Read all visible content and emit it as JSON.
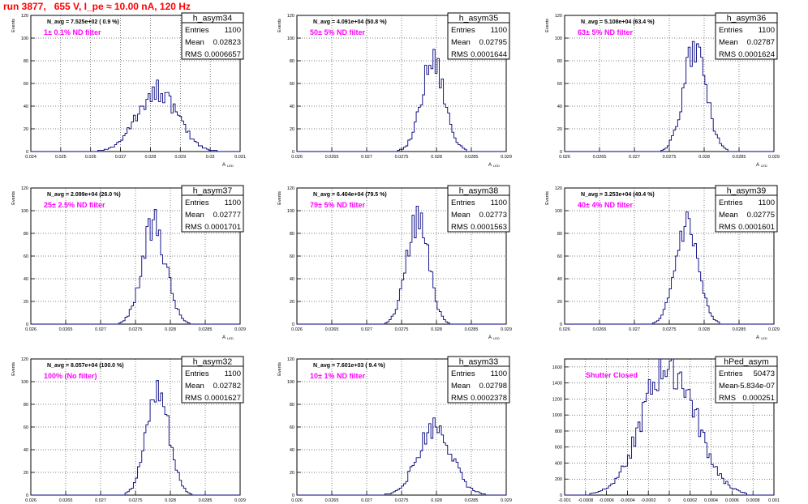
{
  "header": {
    "title": "run 3877,   655 V, I_pe ≈ 10.00 nA, 120 Hz"
  },
  "stats_labels": {
    "entries": "Entries",
    "mean": "Mean",
    "rms": "RMS"
  },
  "colors": {
    "histogram": "#00007f",
    "filter_label": "#ff00ff",
    "title": "#ff0000"
  },
  "chart_data": [
    {
      "type": "histogram",
      "name": "h_asym34",
      "entries": "1100",
      "mean": "0.02823",
      "rms": "0.0006657",
      "navg": "N_avg = 7.525e+02 ( 0.9 %)",
      "filter": "1± 0.1% ND filter",
      "xlim": [
        0.024,
        0.031
      ],
      "xticks": [
        "0.024",
        "0.025",
        "0.026",
        "0.027",
        "0.028",
        "0.029",
        "0.03",
        "0.031"
      ],
      "ylim": [
        0,
        120
      ],
      "yticks": [
        "0",
        "20",
        "40",
        "60",
        "80",
        "100",
        "120"
      ],
      "ylabel": "Events",
      "xlabel": "A",
      "xlabel_sub": "LED",
      "center": 0.02823,
      "sigma": 0.0006657,
      "peak": 54,
      "nbins": 100,
      "seed": 34
    },
    {
      "type": "histogram",
      "name": "h_asym35",
      "entries": "1100",
      "mean": "0.02795",
      "rms": "0.0001644",
      "navg": "N_avg = 4.091e+04 (50.8 %)",
      "filter": "50± 5% ND filter",
      "xlim": [
        0.026,
        0.029
      ],
      "xticks": [
        "0.026",
        "0.0265",
        "0.027",
        "0.0275",
        "0.028",
        "0.0285",
        "0.029"
      ],
      "ylim": [
        0,
        120
      ],
      "yticks": [
        "0",
        "20",
        "40",
        "60",
        "80",
        "100",
        "120"
      ],
      "ylabel": "Events",
      "xlabel": "A",
      "xlabel_sub": "LED",
      "center": 0.02795,
      "sigma": 0.0001644,
      "peak": 82,
      "nbins": 100,
      "seed": 35
    },
    {
      "type": "histogram",
      "name": "h_asym36",
      "entries": "1100",
      "mean": "0.02787",
      "rms": "0.0001624",
      "navg": "N_avg = 5.108e+04 (63.4 %)",
      "filter": "63± 5% ND filter",
      "xlim": [
        0.026,
        0.029
      ],
      "xticks": [
        "0.026",
        "0.0265",
        "0.027",
        "0.0275",
        "0.028",
        "0.0285",
        "0.029"
      ],
      "ylim": [
        0,
        120
      ],
      "yticks": [
        "0",
        "20",
        "40",
        "60",
        "80",
        "100",
        "120"
      ],
      "ylabel": "Events",
      "xlabel": "A",
      "xlabel_sub": "LED",
      "center": 0.02787,
      "sigma": 0.0001624,
      "peak": 90,
      "nbins": 100,
      "seed": 36
    },
    {
      "type": "histogram",
      "name": "h_asym37",
      "entries": "1100",
      "mean": "0.02777",
      "rms": "0.0001701",
      "navg": "N_avg = 2.099e+04 (26.0 %)",
      "filter": "25± 2.5% ND filter",
      "xlim": [
        0.026,
        0.029
      ],
      "xticks": [
        "0.026",
        "0.0265",
        "0.027",
        "0.0275",
        "0.028",
        "0.0285",
        "0.029"
      ],
      "ylim": [
        0,
        120
      ],
      "yticks": [
        "0",
        "20",
        "40",
        "60",
        "80",
        "100",
        "120"
      ],
      "ylabel": "Events",
      "xlabel": "A",
      "xlabel_sub": "LED",
      "center": 0.02777,
      "sigma": 0.0001701,
      "peak": 88,
      "nbins": 100,
      "seed": 37
    },
    {
      "type": "histogram",
      "name": "h_asym38",
      "entries": "1100",
      "mean": "0.02773",
      "rms": "0.0001563",
      "navg": "N_avg = 6.404e+04 (79.5 %)",
      "filter": "79± 5% ND filter",
      "xlim": [
        0.026,
        0.029
      ],
      "xticks": [
        "0.026",
        "0.0265",
        "0.027",
        "0.0275",
        "0.028",
        "0.0285",
        "0.029"
      ],
      "ylim": [
        0,
        120
      ],
      "yticks": [
        "0",
        "20",
        "40",
        "60",
        "80",
        "100",
        "120"
      ],
      "ylabel": "Events",
      "xlabel": "A",
      "xlabel_sub": "LED",
      "center": 0.02773,
      "sigma": 0.0001563,
      "peak": 93,
      "nbins": 100,
      "seed": 38
    },
    {
      "type": "histogram",
      "name": "h_asym39",
      "entries": "1100",
      "mean": "0.02775",
      "rms": "0.0001601",
      "navg": "N_avg = 3.253e+04 (40.4 %)",
      "filter": "40± 4% ND filter",
      "xlim": [
        0.026,
        0.029
      ],
      "xticks": [
        "0.026",
        "0.0265",
        "0.027",
        "0.0275",
        "0.028",
        "0.0285",
        "0.029"
      ],
      "ylim": [
        0,
        120
      ],
      "yticks": [
        "0",
        "20",
        "40",
        "60",
        "80",
        "100",
        "120"
      ],
      "ylabel": "Events",
      "xlabel": "A",
      "xlabel_sub": "LED",
      "center": 0.02775,
      "sigma": 0.0001601,
      "peak": 87,
      "nbins": 100,
      "seed": 39
    },
    {
      "type": "histogram",
      "name": "h_asym32",
      "entries": "1100",
      "mean": "0.02782",
      "rms": "0.0001627",
      "navg": "N_avg = 8.057e+04 (100.0 %)",
      "filter": "100% (No filter)",
      "xlim": [
        0.026,
        0.029
      ],
      "xticks": [
        "0.026",
        "0.0265",
        "0.027",
        "0.0275",
        "0.028",
        "0.0285",
        "0.029"
      ],
      "ylim": [
        0,
        120
      ],
      "yticks": [
        "0",
        "20",
        "40",
        "60",
        "80",
        "100",
        "120"
      ],
      "ylabel": "Events",
      "xlabel": "A",
      "xlabel_sub": "LED",
      "center": 0.02782,
      "sigma": 0.0001627,
      "peak": 92,
      "nbins": 100,
      "seed": 32
    },
    {
      "type": "histogram",
      "name": "h_asym33",
      "entries": "1100",
      "mean": "0.02798",
      "rms": "0.0002378",
      "navg": "N_avg = 7.601e+03 ( 9.4 %)",
      "filter": "10± 1% ND filter",
      "xlim": [
        0.026,
        0.029
      ],
      "xticks": [
        "0.026",
        "0.0265",
        "0.027",
        "0.0275",
        "0.028",
        "0.0285",
        "0.029"
      ],
      "ylim": [
        0,
        120
      ],
      "yticks": [
        "0",
        "20",
        "40",
        "60",
        "80",
        "100",
        "120"
      ],
      "ylabel": "Events",
      "xlabel": "A",
      "xlabel_sub": "LED",
      "center": 0.02798,
      "sigma": 0.0002378,
      "peak": 61,
      "nbins": 100,
      "seed": 33
    },
    {
      "type": "histogram",
      "name": "hPed_asym",
      "entries": "50473",
      "mean": "-5.834e-07",
      "rms": "0.000251",
      "navg": "",
      "filter": "Shutter Closed",
      "xlim": [
        -0.001,
        0.001
      ],
      "xticks": [
        "-0.001",
        "-0.0008",
        "-0.0006",
        "-0.0004",
        "-0.0002",
        "0",
        "0.0002",
        "0.0004",
        "0.0006",
        "0.0008",
        "0.001"
      ],
      "ylim": [
        0,
        1700
      ],
      "yticks": [
        "0",
        "200",
        "400",
        "600",
        "800",
        "1000",
        "1200",
        "1400",
        "1600"
      ],
      "ylabel": "",
      "xlabel": "",
      "xlabel_sub": "",
      "center": -6e-07,
      "sigma": 0.000251,
      "peak": 1640,
      "nbins": 100,
      "seed": 40
    }
  ]
}
